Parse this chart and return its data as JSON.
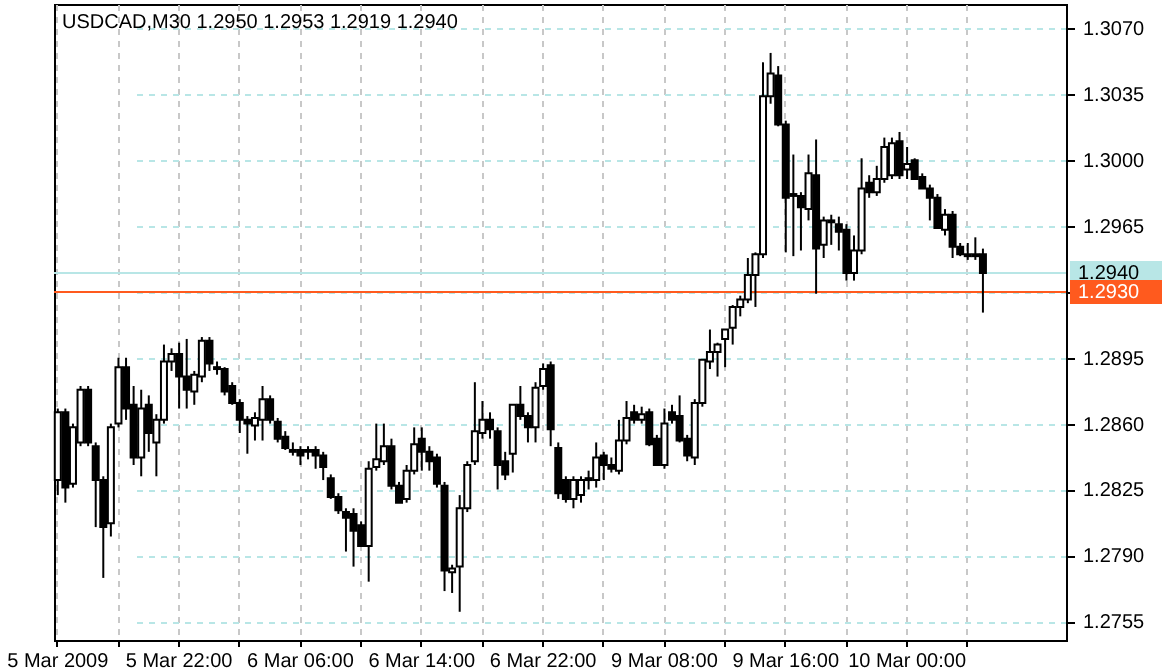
{
  "chart_data": {
    "type": "candlestick",
    "title": "USDCAD,M30  1.2950 1.2953 1.2919 1.2940",
    "categories": [
      "5 Mar 2009",
      null,
      null,
      null,
      null,
      null,
      null,
      null,
      null,
      null,
      null,
      null,
      null,
      null,
      null,
      null,
      "5 Mar 22:00",
      null,
      null,
      null,
      null,
      null,
      null,
      null,
      null,
      null,
      null,
      null,
      null,
      null,
      null,
      null,
      "6 Mar 06:00",
      null,
      null,
      null,
      null,
      null,
      null,
      null,
      null,
      null,
      null,
      null,
      null,
      null,
      null,
      null,
      "6 Mar 14:00",
      null,
      null,
      null,
      null,
      null,
      null,
      null,
      null,
      null,
      null,
      null,
      null,
      null,
      null,
      null,
      "6 Mar 22:00",
      null,
      null,
      null,
      null,
      null,
      null,
      null,
      null,
      null,
      null,
      null,
      null,
      null,
      null,
      null,
      "9 Mar 08:00",
      null,
      null,
      null,
      null,
      null,
      null,
      null,
      null,
      null,
      null,
      null,
      null,
      null,
      null,
      null,
      "9 Mar 16:00",
      null,
      null,
      null,
      null,
      null,
      null,
      null,
      null,
      null,
      null,
      null,
      null,
      null,
      null,
      null,
      "10 Mar 00:00",
      null,
      null,
      null,
      null,
      null,
      null,
      null,
      null,
      null,
      null
    ],
    "ohlc": [
      [
        1.283,
        1.2868,
        1.2822,
        1.2866
      ],
      [
        1.2866,
        1.2868,
        1.2818,
        1.2826
      ],
      [
        1.2828,
        1.286,
        1.2826,
        1.2858
      ],
      [
        1.285,
        1.288,
        1.2848,
        1.2878
      ],
      [
        1.2878,
        1.288,
        1.2848,
        1.285
      ],
      [
        1.2848,
        1.285,
        1.2805,
        1.283
      ],
      [
        1.283,
        1.2832,
        1.2778,
        1.2805
      ],
      [
        1.2807,
        1.286,
        1.28,
        1.2858
      ],
      [
        1.286,
        1.2895,
        1.2858,
        1.289
      ],
      [
        1.289,
        1.2895,
        1.2862,
        1.2868
      ],
      [
        1.287,
        1.288,
        1.2838,
        1.2842
      ],
      [
        1.2842,
        1.2878,
        1.2832,
        1.2868
      ],
      [
        1.287,
        1.2875,
        1.2845,
        1.2855
      ],
      [
        1.285,
        1.2865,
        1.2832,
        1.2862
      ],
      [
        1.2862,
        1.2902,
        1.286,
        1.2893
      ],
      [
        1.2893,
        1.29,
        1.2888,
        1.2897
      ],
      [
        1.2897,
        1.2903,
        1.2868,
        1.2885
      ],
      [
        1.2885,
        1.2905,
        1.2868,
        1.2878
      ],
      [
        1.2877,
        1.2888,
        1.287,
        1.2886
      ],
      [
        1.2885,
        1.2906,
        1.2882,
        1.2904
      ],
      [
        1.2904,
        1.2906,
        1.2888,
        1.2892
      ],
      [
        1.289,
        1.2893,
        1.2886,
        1.2889
      ],
      [
        1.2889,
        1.289,
        1.2875,
        1.2877
      ],
      [
        1.288,
        1.2882,
        1.287,
        1.2871
      ],
      [
        1.2871,
        1.2873,
        1.2855,
        1.2862
      ],
      [
        1.2862,
        1.2864,
        1.2844,
        1.286
      ],
      [
        1.2859,
        1.2866,
        1.2851,
        1.2863
      ],
      [
        1.2862,
        1.288,
        1.2851,
        1.2873
      ],
      [
        1.2873,
        1.2875,
        1.286,
        1.2862
      ],
      [
        1.2861,
        1.2863,
        1.285,
        1.2852
      ],
      [
        1.2853,
        1.2856,
        1.2846,
        1.2847
      ],
      [
        1.2846,
        1.285,
        1.2843,
        1.2845
      ],
      [
        1.2846,
        1.2848,
        1.2838,
        1.2843
      ],
      [
        1.2845,
        1.2848,
        1.2841,
        1.2846
      ],
      [
        1.2846,
        1.2848,
        1.2836,
        1.2843
      ],
      [
        1.2843,
        1.2845,
        1.283,
        1.2837
      ],
      [
        1.2831,
        1.2833,
        1.282,
        1.2821
      ],
      [
        1.2821,
        1.2823,
        1.2812,
        1.2814
      ],
      [
        1.2813,
        1.2815,
        1.2792,
        1.281
      ],
      [
        1.2812,
        1.2815,
        1.2784,
        1.2803
      ],
      [
        1.2806,
        1.2808,
        1.2795,
        1.2795
      ],
      [
        1.2795,
        1.284,
        1.2776,
        1.2836
      ],
      [
        1.2837,
        1.286,
        1.2835,
        1.2841
      ],
      [
        1.284,
        1.286,
        1.2838,
        1.2848
      ],
      [
        1.2848,
        1.2852,
        1.2825,
        1.2827
      ],
      [
        1.2827,
        1.2829,
        1.2818,
        1.2818
      ],
      [
        1.282,
        1.2838,
        1.2818,
        1.2835
      ],
      [
        1.2835,
        1.2858,
        1.2833,
        1.2849
      ],
      [
        1.2852,
        1.2858,
        1.2835,
        1.2845
      ],
      [
        1.2845,
        1.2848,
        1.2835,
        1.284
      ],
      [
        1.2842,
        1.2844,
        1.2826,
        1.2828
      ],
      [
        1.2827,
        1.2829,
        1.2771,
        1.2782
      ],
      [
        1.2781,
        1.2785,
        1.277,
        1.2783
      ],
      [
        1.2784,
        1.2822,
        1.276,
        1.2815
      ],
      [
        1.2815,
        1.284,
        1.2813,
        1.2838
      ],
      [
        1.284,
        1.2882,
        1.2838,
        1.2856
      ],
      [
        1.2855,
        1.2872,
        1.2852,
        1.2862
      ],
      [
        1.2862,
        1.2866,
        1.2852,
        1.2857
      ],
      [
        1.2856,
        1.2858,
        1.2825,
        1.2838
      ],
      [
        1.284,
        1.2845,
        1.283,
        1.2833
      ],
      [
        1.2844,
        1.287,
        1.2834,
        1.287
      ],
      [
        1.287,
        1.288,
        1.2862,
        1.2864
      ],
      [
        1.2864,
        1.2866,
        1.285,
        1.2858
      ],
      [
        1.2858,
        1.2882,
        1.285,
        1.2879
      ],
      [
        1.288,
        1.2892,
        1.2878,
        1.2889
      ],
      [
        1.2891,
        1.2893,
        1.2848,
        1.2857
      ],
      [
        1.2847,
        1.285,
        1.282,
        1.2823
      ],
      [
        1.283,
        1.2832,
        1.2818,
        1.282
      ],
      [
        1.282,
        1.2832,
        1.2815,
        1.283
      ],
      [
        1.2822,
        1.2832,
        1.2818,
        1.283
      ],
      [
        1.283,
        1.2835,
        1.2825,
        1.2831
      ],
      [
        1.283,
        1.285,
        1.2826,
        1.2842
      ],
      [
        1.2843,
        1.2845,
        1.283,
        1.2838
      ],
      [
        1.2838,
        1.2842,
        1.2834,
        1.2836
      ],
      [
        1.2835,
        1.2862,
        1.2833,
        1.2851
      ],
      [
        1.2851,
        1.2872,
        1.2849,
        1.2863
      ],
      [
        1.2866,
        1.287,
        1.286,
        1.2862
      ],
      [
        1.2862,
        1.2869,
        1.286,
        1.2865
      ],
      [
        1.2866,
        1.2868,
        1.2848,
        1.2849
      ],
      [
        1.2852,
        1.2854,
        1.2838,
        1.2838
      ],
      [
        1.2838,
        1.2868,
        1.2836,
        1.286
      ],
      [
        1.2866,
        1.287,
        1.286,
        1.2862
      ],
      [
        1.2864,
        1.2875,
        1.285,
        1.2851
      ],
      [
        1.2852,
        1.2854,
        1.284,
        1.2843
      ],
      [
        1.2842,
        1.2873,
        1.2838,
        1.2871
      ],
      [
        1.2871,
        1.2894,
        1.2869,
        1.2894
      ],
      [
        1.2893,
        1.291,
        1.2889,
        1.2898
      ],
      [
        1.2898,
        1.2903,
        1.2885,
        1.2902
      ],
      [
        1.2905,
        1.291,
        1.289,
        1.291
      ],
      [
        1.2911,
        1.2923,
        1.2902,
        1.2922
      ],
      [
        1.2922,
        1.2928,
        1.2917,
        1.2926
      ],
      [
        1.2926,
        1.2948,
        1.2924,
        1.2939
      ],
      [
        1.2939,
        1.2951,
        1.2922,
        1.295
      ],
      [
        1.295,
        1.3052,
        1.2948,
        1.3034
      ],
      [
        1.3034,
        1.3057,
        1.303,
        1.3046
      ],
      [
        1.3045,
        1.305,
        1.3018,
        1.3019
      ],
      [
        1.3019,
        1.3021,
        1.2951,
        1.298
      ],
      [
        1.2982,
        1.3003,
        1.2949,
        1.2981
      ],
      [
        1.2981,
        1.2983,
        1.2952,
        1.2975
      ],
      [
        1.2974,
        1.3003,
        1.2968,
        1.2993
      ],
      [
        1.2992,
        1.3011,
        1.2929,
        1.2953
      ],
      [
        1.2955,
        1.297,
        1.2948,
        1.2968
      ],
      [
        1.2968,
        1.2971,
        1.2955,
        1.2967
      ],
      [
        1.2966,
        1.297,
        1.2952,
        1.2962
      ],
      [
        1.2963,
        1.2966,
        1.2936,
        1.294
      ],
      [
        1.294,
        1.296,
        1.2936,
        1.2952
      ],
      [
        1.2952,
        1.3001,
        1.295,
        1.2985
      ],
      [
        1.2988,
        1.2992,
        1.298,
        1.2983
      ],
      [
        1.2983,
        1.2997,
        1.2981,
        1.299
      ],
      [
        1.299,
        1.3012,
        1.2988,
        1.3007
      ],
      [
        1.2992,
        1.3012,
        1.299,
        1.3009
      ],
      [
        1.301,
        1.3015,
        1.299,
        1.2992
      ],
      [
        1.2995,
        1.3007,
        1.299,
        1.2998
      ],
      [
        1.3,
        1.3001,
        1.299,
        1.299
      ],
      [
        1.2991,
        1.2993,
        1.2985,
        1.2985
      ],
      [
        1.2985,
        1.2987,
        1.2968,
        1.298
      ],
      [
        1.298,
        1.2982,
        1.2964,
        1.2964
      ],
      [
        1.2963,
        1.2974,
        1.296,
        1.2971
      ],
      [
        1.2971,
        1.2973,
        1.2948,
        1.2954
      ],
      [
        1.2954,
        1.2956,
        1.2949,
        1.295
      ],
      [
        1.295,
        1.2956,
        1.2947,
        1.2949
      ],
      [
        1.2949,
        1.2959,
        1.2947,
        1.295
      ],
      [
        1.295,
        1.2953,
        1.2919,
        1.294
      ]
    ],
    "ylim": [
      1.2745,
      1.3083
    ],
    "yticks": [
      {
        "value": 1.2755,
        "label": "1.2755"
      },
      {
        "value": 1.279,
        "label": "1.2790"
      },
      {
        "value": 1.2825,
        "label": "1.2825"
      },
      {
        "value": 1.286,
        "label": "1.2860"
      },
      {
        "value": 1.2895,
        "label": "1.2895"
      },
      {
        "value": 1.293,
        "label": null
      },
      {
        "value": 1.2965,
        "label": "1.2965"
      },
      {
        "value": 1.3,
        "label": "1.3000"
      },
      {
        "value": 1.3035,
        "label": "1.3035"
      },
      {
        "value": 1.307,
        "label": "1.3070"
      }
    ],
    "ref_lines": [
      {
        "axis": "y",
        "value": 1.294,
        "label": "1.2940",
        "color": "#b8e6e6"
      },
      {
        "axis": "y",
        "value": 1.293,
        "label": "1.2930",
        "color": "#ff5a1e"
      }
    ],
    "grid": true
  }
}
